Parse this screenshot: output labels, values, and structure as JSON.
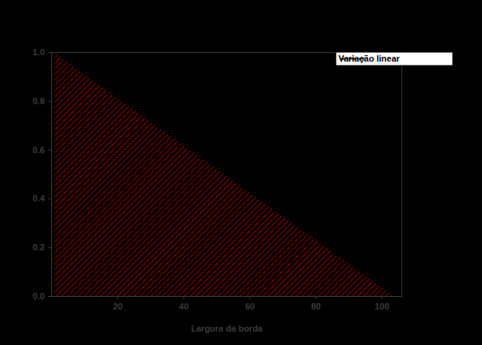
{
  "chart_data": {
    "type": "area",
    "xlabel": "Largura da borda",
    "series": [
      {
        "name": "Variação linear",
        "color": "#c00000",
        "x": [
          1,
          104
        ],
        "values": [
          1.0,
          0.0
        ]
      }
    ],
    "xlim": [
      0,
      106
    ],
    "xticks": [
      20,
      40,
      60,
      80,
      100
    ],
    "ylim": [
      0,
      1
    ],
    "yticks": [
      {
        "value": 0,
        "label": "0.0"
      },
      {
        "value": 0.2,
        "label": "0.2"
      },
      {
        "value": 0.4,
        "label": "0.4"
      },
      {
        "value": 0.6,
        "label": "0.6"
      },
      {
        "value": 0.8,
        "label": "0.8"
      },
      {
        "value": 1,
        "label": "1.0"
      }
    ],
    "legend": "top-right"
  }
}
